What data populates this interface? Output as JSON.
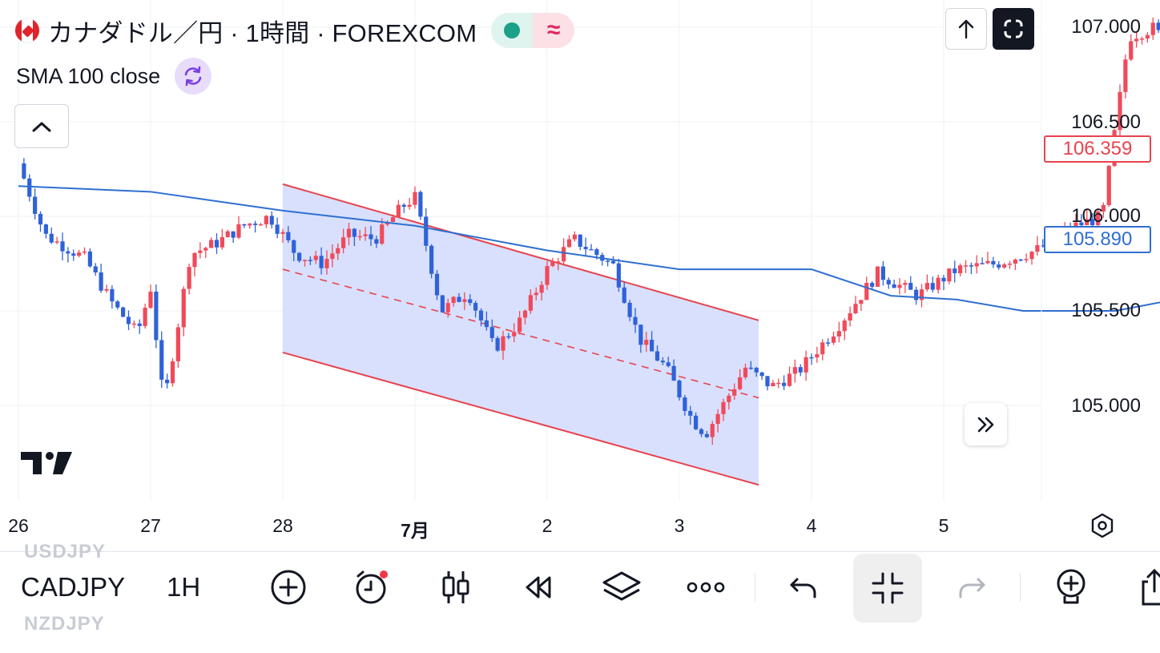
{
  "header": {
    "symbol_title": "カナダドル／円 · 1時間 · FOREXCOM",
    "indicator": "SMA 100 close",
    "status_market_color": "#1ba089"
  },
  "price_axis": {
    "labels": [
      "107.000",
      "106.500",
      "106.000",
      "105.500",
      "105.000"
    ],
    "last_price": "106.359",
    "sma_value": "105.890"
  },
  "time_axis": {
    "labels": [
      "26",
      "27",
      "28",
      "7月",
      "2",
      "3",
      "4",
      "5"
    ]
  },
  "colors": {
    "up": "#f04a5a",
    "down": "#2f62d9",
    "sma": "#2f6fd0",
    "channel_line": "#e8434f",
    "channel_fill": "#d6defd"
  },
  "chart_data": {
    "type": "candlestick",
    "title": "カナダドル／円 · 1時間 · FOREXCOM",
    "ylim": [
      104.55,
      107.15
    ],
    "x_ticks": [
      "26",
      "27",
      "28",
      "7月",
      "2",
      "3",
      "4",
      "5"
    ],
    "y_ticks": [
      107.0,
      106.5,
      106.0,
      105.5,
      105.0
    ],
    "last_price": 106.359,
    "sma_100_last": 105.89,
    "series": [
      {
        "name": "SMA 100 close",
        "points": [
          [
            0,
            106.16
          ],
          [
            1,
            106.13
          ],
          [
            2,
            106.03
          ],
          [
            3,
            105.95
          ],
          [
            4,
            105.82
          ],
          [
            5,
            105.72
          ],
          [
            6,
            105.72
          ],
          [
            6.6,
            105.58
          ],
          [
            7.1,
            105.56
          ],
          [
            7.6,
            105.5
          ],
          [
            8.3,
            105.5
          ],
          [
            9.2,
            105.62
          ],
          [
            10.6,
            105.72
          ],
          [
            11.6,
            105.8
          ],
          [
            11.9,
            105.89
          ]
        ]
      },
      {
        "name": "CADJPY close",
        "points": [
          [
            0,
            106.28
          ],
          [
            0.2,
            105.9
          ],
          [
            0.5,
            105.78
          ],
          [
            0.7,
            105.55
          ],
          [
            0.9,
            105.38
          ],
          [
            1.0,
            105.62
          ],
          [
            1.1,
            105.0
          ],
          [
            1.2,
            105.4
          ],
          [
            1.3,
            105.8
          ],
          [
            1.5,
            105.86
          ],
          [
            1.7,
            105.95
          ],
          [
            1.9,
            106.0
          ],
          [
            2.1,
            105.8
          ],
          [
            2.3,
            105.75
          ],
          [
            2.5,
            105.9
          ],
          [
            2.7,
            105.88
          ],
          [
            2.9,
            106.05
          ],
          [
            3.0,
            106.1
          ],
          [
            3.2,
            105.5
          ],
          [
            3.4,
            105.6
          ],
          [
            3.6,
            105.3
          ],
          [
            3.8,
            105.45
          ],
          [
            4.0,
            105.72
          ],
          [
            4.2,
            105.88
          ],
          [
            4.5,
            105.74
          ],
          [
            4.7,
            105.35
          ],
          [
            4.9,
            105.2
          ],
          [
            5.1,
            104.92
          ],
          [
            5.2,
            104.85
          ],
          [
            5.5,
            105.2
          ],
          [
            5.7,
            105.1
          ],
          [
            5.9,
            105.18
          ],
          [
            6.2,
            105.42
          ],
          [
            6.5,
            105.7
          ],
          [
            6.8,
            105.58
          ],
          [
            7.1,
            105.72
          ],
          [
            7.4,
            105.75
          ],
          [
            7.7,
            105.82
          ],
          [
            8.0,
            105.95
          ],
          [
            8.2,
            106.0
          ],
          [
            8.4,
            106.95
          ],
          [
            8.6,
            107.0
          ],
          [
            8.9,
            106.6
          ],
          [
            9.2,
            106.45
          ],
          [
            9.6,
            106.2
          ],
          [
            10.0,
            106.2
          ],
          [
            10.3,
            106.2
          ],
          [
            10.6,
            106.25
          ],
          [
            10.9,
            106.2
          ],
          [
            11.2,
            106.35
          ],
          [
            11.5,
            106.4
          ],
          [
            11.9,
            106.359
          ]
        ]
      }
    ],
    "channel": {
      "upper": [
        [
          28,
          106.17
        ],
        [
          3.6,
          105.45
        ]
      ],
      "middle": [
        [
          28,
          105.72
        ],
        [
          3.6,
          105.04
        ]
      ],
      "lower": [
        [
          28,
          105.28
        ],
        [
          3.6,
          104.58
        ]
      ]
    }
  },
  "toolbar": {
    "symbol": "CADJPY",
    "interval": "1H",
    "ghost_above": "USDJPY",
    "ghost_below": "NZDJPY"
  }
}
